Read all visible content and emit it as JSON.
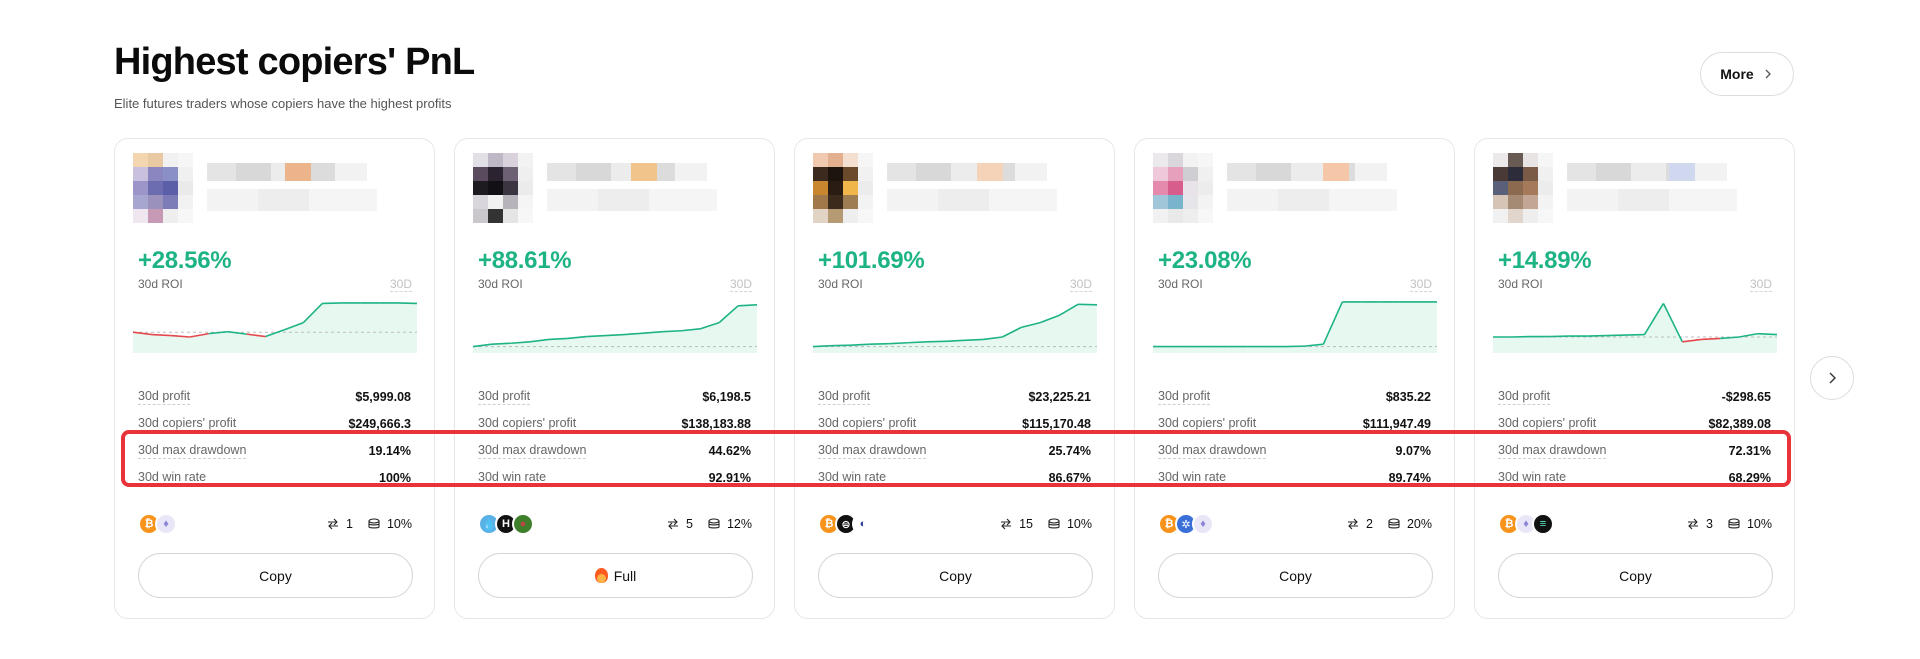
{
  "header": {
    "title": "Highest copiers' PnL",
    "subtitle": "Elite futures traders whose copiers have the highest profits",
    "more_label": "More"
  },
  "colors": {
    "positive": "#1db385",
    "negative": "#e5484d",
    "highlight": "#e8333a"
  },
  "labels": {
    "roi": "30d ROI",
    "period": "30D",
    "profit": "30d profit",
    "copiers_profit": "30d copiers' profit",
    "max_drawdown": "30d max drawdown",
    "win_rate": "30d win rate"
  },
  "traders": [
    {
      "roi": "+28.56%",
      "profit": "$5,999.08",
      "copiers_profit": "$249,666.3",
      "max_drawdown": "19.14%",
      "win_rate": "100%",
      "copiers": "1",
      "share": "10%",
      "button_label": "Copy",
      "button_state": "available",
      "coins": [
        "bitcoin-icon",
        "ethereum-icon"
      ],
      "trend": [
        0.35,
        0.3,
        0.28,
        0.25,
        0.32,
        0.36,
        0.31,
        0.26,
        0.4,
        0.55,
        0.95,
        0.96,
        0.96,
        0.96,
        0.96,
        0.95
      ]
    },
    {
      "roi": "+88.61%",
      "profit": "$6,198.5",
      "copiers_profit": "$138,183.88",
      "max_drawdown": "44.62%",
      "win_rate": "92.91%",
      "copiers": "5",
      "share": "12%",
      "button_label": "Full",
      "button_state": "full",
      "coins": [
        "drop-token-icon",
        "hedera-icon",
        "frog-token-icon"
      ],
      "trend": [
        0.05,
        0.1,
        0.12,
        0.15,
        0.2,
        0.22,
        0.26,
        0.28,
        0.3,
        0.33,
        0.36,
        0.38,
        0.42,
        0.55,
        0.9,
        0.92
      ]
    },
    {
      "roi": "+101.69%",
      "profit": "$23,225.21",
      "copiers_profit": "$115,170.48",
      "max_drawdown": "25.74%",
      "win_rate": "86.67%",
      "copiers": "15",
      "share": "10%",
      "button_label": "Copy",
      "button_state": "available",
      "coins": [
        "bitcoin-icon",
        "ethena-icon",
        "moon-token-icon"
      ],
      "trend": [
        0.05,
        0.07,
        0.08,
        0.1,
        0.11,
        0.13,
        0.15,
        0.16,
        0.18,
        0.2,
        0.25,
        0.45,
        0.55,
        0.7,
        0.93,
        0.92
      ]
    },
    {
      "roi": "+23.08%",
      "profit": "$835.22",
      "copiers_profit": "$111,947.49",
      "max_drawdown": "9.07%",
      "win_rate": "89.74%",
      "copiers": "2",
      "share": "20%",
      "button_label": "Copy",
      "button_state": "available",
      "coins": [
        "bitcoin-icon",
        "gear-token-icon",
        "ethereum-icon"
      ],
      "trend": [
        0.05,
        0.05,
        0.05,
        0.05,
        0.05,
        0.05,
        0.05,
        0.05,
        0.06,
        0.1,
        0.98,
        0.98,
        0.98,
        0.98,
        0.98,
        0.98
      ]
    },
    {
      "roi": "+14.89%",
      "profit": "-$298.65",
      "copiers_profit": "$82,389.08",
      "max_drawdown": "72.31%",
      "win_rate": "68.29%",
      "copiers": "3",
      "share": "10%",
      "button_label": "Copy",
      "button_state": "available",
      "coins": [
        "bitcoin-icon",
        "ethereum-icon",
        "solana-icon"
      ],
      "trend": [
        0.25,
        0.25,
        0.26,
        0.26,
        0.27,
        0.27,
        0.28,
        0.29,
        0.3,
        0.95,
        0.15,
        0.2,
        0.22,
        0.25,
        0.32,
        0.3
      ]
    }
  ]
}
